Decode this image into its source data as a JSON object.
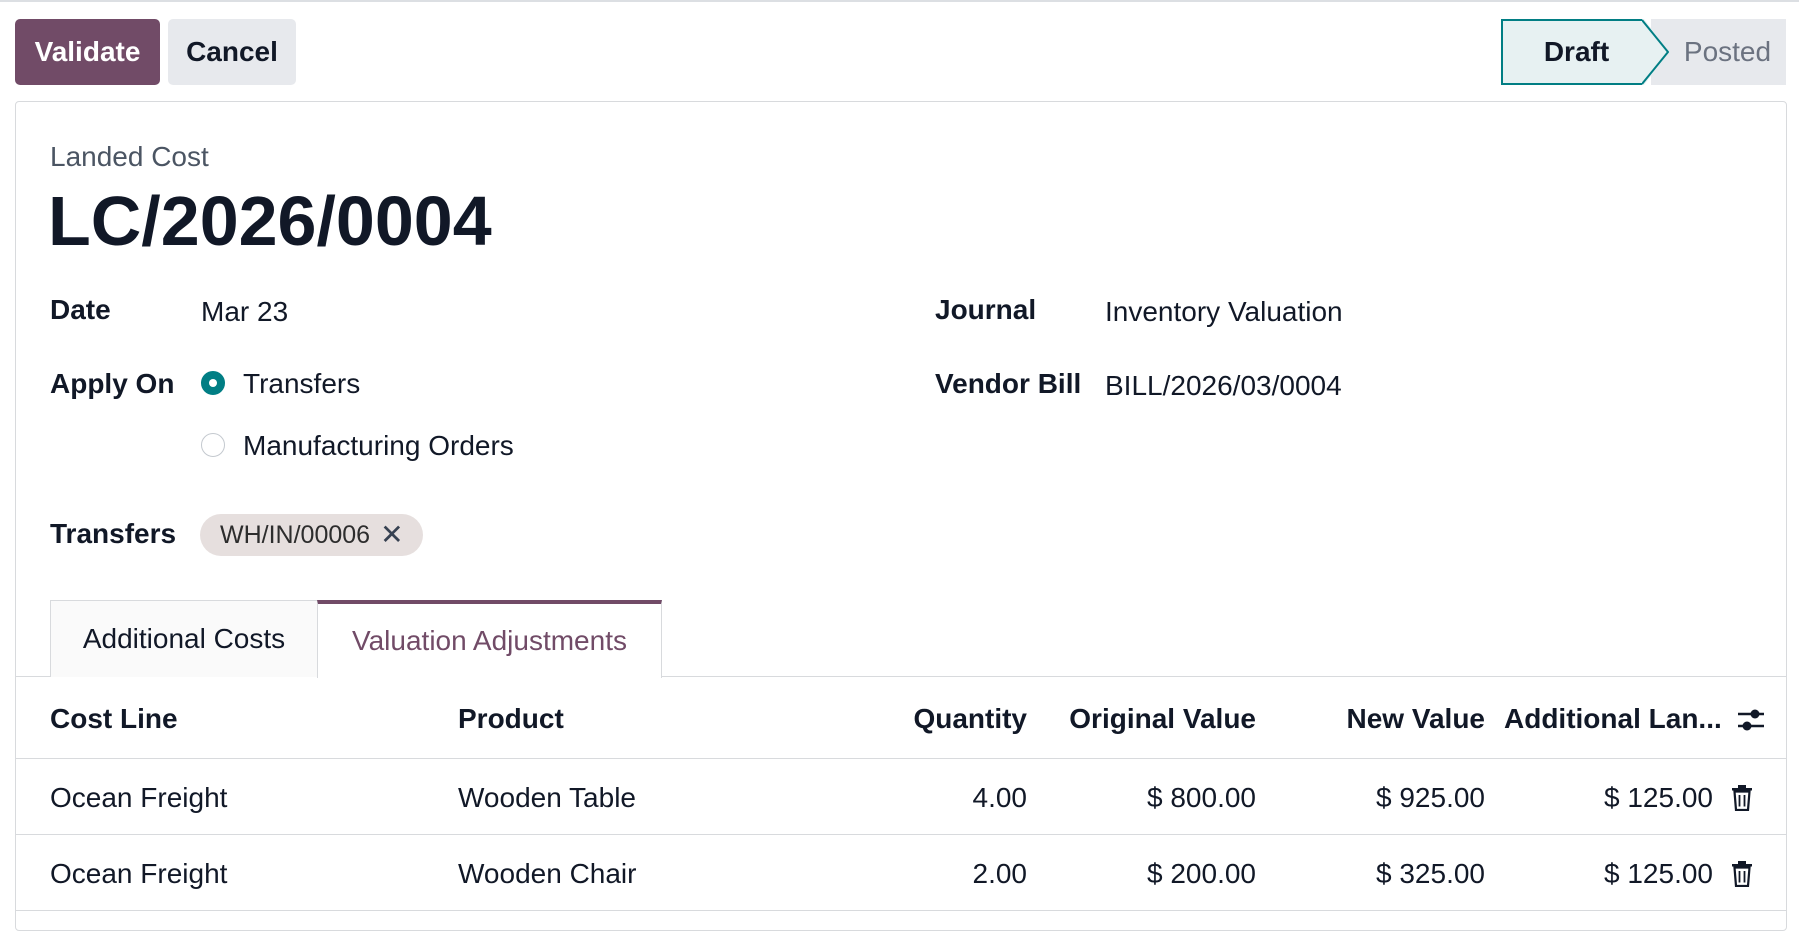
{
  "toolbar": {
    "validate_label": "Validate",
    "cancel_label": "Cancel"
  },
  "statusbar": {
    "draft": "Draft",
    "posted": "Posted",
    "active": "Draft"
  },
  "record": {
    "model_label": "Landed Cost",
    "name": "LC/2026/0004"
  },
  "fields": {
    "date_label": "Date",
    "date_value": "Mar 23",
    "journal_label": "Journal",
    "journal_value": "Inventory Valuation",
    "apply_on_label": "Apply On",
    "apply_on_options": [
      "Transfers",
      "Manufacturing Orders"
    ],
    "apply_on_selected": "Transfers",
    "vendor_bill_label": "Vendor Bill",
    "vendor_bill_value": "BILL/2026/03/0004",
    "transfers_label": "Transfers",
    "transfers_tags": [
      "WH/IN/00006"
    ]
  },
  "tabs": [
    {
      "label": "Additional Costs",
      "active": false
    },
    {
      "label": "Valuation Adjustments",
      "active": true
    }
  ],
  "table": {
    "columns": [
      "Cost Line",
      "Product",
      "Quantity",
      "Original Value",
      "New Value",
      "Additional Lan..."
    ],
    "rows": [
      {
        "cost_line": "Ocean Freight",
        "product": "Wooden Table",
        "quantity": "4.00",
        "original_value": "$ 800.00",
        "new_value": "$ 925.00",
        "additional": "$ 125.00"
      },
      {
        "cost_line": "Ocean Freight",
        "product": "Wooden Chair",
        "quantity": "2.00",
        "original_value": "$ 200.00",
        "new_value": "$ 325.00",
        "additional": "$ 125.00"
      }
    ]
  },
  "colors": {
    "brand": "#714b67",
    "accent": "#017e84",
    "tag_bg": "#e6dfde"
  },
  "icons": {
    "tag_remove": "close-icon",
    "row_delete": "trash-icon",
    "optional_columns": "sliders-icon"
  }
}
